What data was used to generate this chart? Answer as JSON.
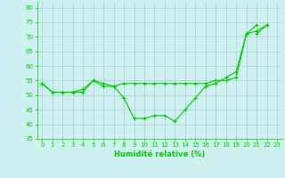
{
  "xlabel": "Humidité relative (%)",
  "x_values": [
    0,
    1,
    2,
    3,
    4,
    5,
    6,
    7,
    8,
    9,
    10,
    11,
    12,
    13,
    14,
    15,
    16,
    17,
    18,
    19,
    20,
    21,
    22,
    23
  ],
  "line_A": [
    54,
    51,
    51,
    51,
    52,
    55,
    54,
    53,
    54,
    54,
    54,
    54,
    54,
    54,
    54,
    54,
    54,
    55,
    55,
    56,
    71,
    72,
    74,
    null
  ],
  "line_B": [
    54,
    51,
    51,
    51,
    51,
    55,
    53,
    53,
    49,
    42,
    42,
    43,
    43,
    41,
    45,
    49,
    53,
    54,
    56,
    58,
    71,
    74,
    null,
    null
  ],
  "line_C": [
    54,
    null,
    null,
    null,
    null,
    null,
    null,
    null,
    null,
    null,
    null,
    null,
    null,
    null,
    null,
    null,
    null,
    null,
    null,
    null,
    null,
    71,
    74,
    null
  ],
  "ylim": [
    35,
    82
  ],
  "xlim": [
    -0.5,
    23.5
  ],
  "yticks": [
    35,
    40,
    45,
    50,
    55,
    60,
    65,
    70,
    75,
    80
  ],
  "xticks": [
    0,
    1,
    2,
    3,
    4,
    5,
    6,
    7,
    8,
    9,
    10,
    11,
    12,
    13,
    14,
    15,
    16,
    17,
    18,
    19,
    20,
    21,
    22,
    23
  ],
  "line_color": "#00cc00",
  "bg_color": "#cff0f0",
  "grid_color": "#aacccc",
  "marker": "+",
  "linewidth": 0.8,
  "markersize": 3,
  "tick_labelsize": 5,
  "xlabel_fontsize": 6
}
